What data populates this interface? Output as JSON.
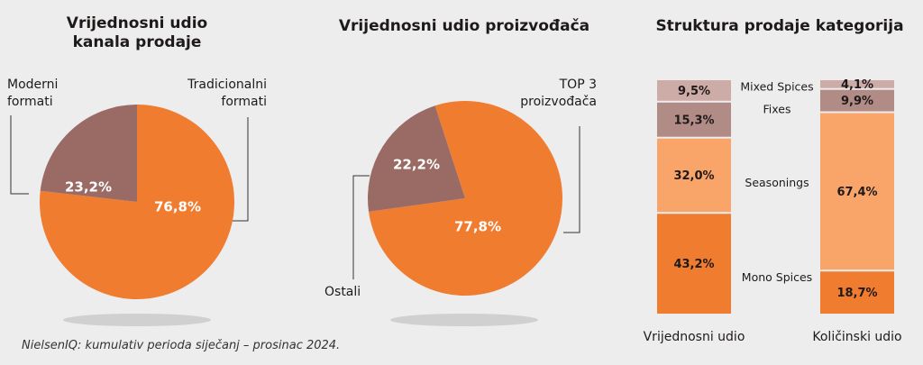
{
  "chart_data": [
    {
      "type": "pie",
      "title": "Vrijednosni udio kanala prodaje",
      "categories": [
        "Tradicionalni formati",
        "Moderni formati"
      ],
      "values": [
        76.8,
        23.2
      ],
      "value_labels": [
        "76,8%",
        "23,2%"
      ],
      "colors": [
        "#f07c30",
        "#9a6b64"
      ]
    },
    {
      "type": "pie",
      "title": "Vrijednosni udio proizvođača",
      "categories": [
        "TOP 3 proizvođača",
        "Ostali"
      ],
      "values": [
        77.8,
        22.2
      ],
      "value_labels": [
        "77,8%",
        "22,2%"
      ],
      "colors": [
        "#f07c30",
        "#9a6b64"
      ]
    },
    {
      "type": "stacked_bar",
      "title": "Struktura prodaje kategorija",
      "categories": [
        "Vrijednosni udio",
        "Količinski udio"
      ],
      "series": [
        {
          "name": "Mono Spices",
          "color": "#f07c30",
          "values": [
            43.2,
            18.7
          ],
          "value_labels": [
            "43,2%",
            "18,7%"
          ]
        },
        {
          "name": "Seasonings",
          "color": "#f9a468",
          "values": [
            32.0,
            67.4
          ],
          "value_labels": [
            "32,0%",
            "67,4%"
          ]
        },
        {
          "name": "Fixes",
          "color": "#b18c87",
          "values": [
            15.3,
            9.9
          ],
          "value_labels": [
            "15,3%",
            "9,9%"
          ]
        },
        {
          "name": "Mixed Spices",
          "color": "#cdaca7",
          "values": [
            9.5,
            4.1
          ],
          "value_labels": [
            "9,5%",
            "4,1%"
          ]
        }
      ]
    }
  ],
  "footnote": "NielsenIQ: kumulativ perioda siječanj – prosinac 2024."
}
